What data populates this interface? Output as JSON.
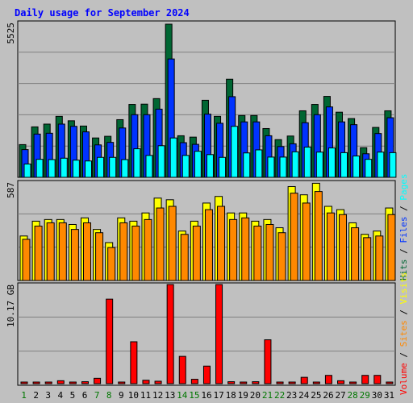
{
  "title": "Daily usage for September 2024",
  "colors": {
    "background": "#c0c0c0",
    "title": "#0000ff",
    "grid": "#808080",
    "hits": "#006633",
    "files": "#0033ff",
    "pages": "#00ffff",
    "visits": "#ffff00",
    "sites": "#ff8800",
    "volume": "#ff0000",
    "weekday_label": "#000000",
    "weekend_label": "#007700"
  },
  "chart_data": [
    {
      "type": "bar",
      "name": "hits-files-pages",
      "y_max_label": "5525",
      "ylim": [
        0,
        5525
      ],
      "grid": true,
      "series": [
        {
          "name": "Hits",
          "values": [
            1180,
            1820,
            1920,
            2200,
            2040,
            1850,
            1420,
            1480,
            2080,
            2630,
            2640,
            2840,
            5525,
            1500,
            1450,
            2780,
            2200,
            3540,
            2230,
            2230,
            1760,
            1360,
            1490,
            2400,
            2630,
            2920,
            2350,
            2120,
            1070,
            1800,
            2400
          ]
        },
        {
          "name": "Files",
          "values": [
            1000,
            1560,
            1590,
            1920,
            1840,
            1640,
            1170,
            1260,
            1780,
            2260,
            2260,
            2460,
            4270,
            1250,
            1190,
            2280,
            1950,
            2910,
            2000,
            2000,
            1500,
            1110,
            1210,
            1970,
            2260,
            2540,
            2000,
            1900,
            850,
            1580,
            2150
          ]
        },
        {
          "name": "Pages",
          "values": [
            480,
            650,
            640,
            690,
            620,
            590,
            720,
            720,
            640,
            1030,
            790,
            1140,
            1420,
            790,
            940,
            820,
            720,
            1840,
            880,
            990,
            730,
            730,
            920,
            1090,
            910,
            1060,
            890,
            770,
            650,
            910,
            890
          ]
        }
      ]
    },
    {
      "type": "bar",
      "name": "visits-sites",
      "y_max_label": "587",
      "ylim": [
        0,
        587
      ],
      "grid": true,
      "series": [
        {
          "name": "Visits",
          "values": [
            270,
            360,
            370,
            370,
            340,
            380,
            310,
            230,
            380,
            360,
            410,
            500,
            490,
            300,
            360,
            470,
            510,
            410,
            410,
            360,
            370,
            320,
            570,
            520,
            590,
            450,
            430,
            350,
            280,
            300,
            440
          ]
        },
        {
          "name": "Sites",
          "values": [
            250,
            330,
            350,
            350,
            310,
            350,
            290,
            200,
            350,
            330,
            370,
            440,
            450,
            280,
            330,
            430,
            450,
            370,
            380,
            330,
            340,
            290,
            530,
            470,
            540,
            410,
            400,
            320,
            260,
            270,
            400
          ]
        }
      ]
    },
    {
      "type": "bar",
      "name": "volume",
      "y_max_label": "10.17 GB",
      "ylim": [
        0,
        10.17
      ],
      "grid": true,
      "series": [
        {
          "name": "Volume",
          "values": [
            0.08,
            0.15,
            0.1,
            0.3,
            0.15,
            0.2,
            0.55,
            8.67,
            0.1,
            4.3,
            0.35,
            0.25,
            10.17,
            2.8,
            0.45,
            1.8,
            10.17,
            0.2,
            0.1,
            0.2,
            4.5,
            0.1,
            0.08,
            0.65,
            0.15,
            0.85,
            0.3,
            0.05,
            0.85,
            0.85,
            0.05
          ]
        }
      ]
    }
  ],
  "x_labels": [
    "1",
    "2",
    "3",
    "4",
    "5",
    "6",
    "7",
    "8",
    "9",
    "10",
    "11",
    "12",
    "13",
    "14",
    "15",
    "16",
    "17",
    "18",
    "19",
    "20",
    "21",
    "22",
    "23",
    "24",
    "25",
    "26",
    "27",
    "28",
    "29",
    "30",
    "31"
  ],
  "weekend_days": [
    1,
    7,
    8,
    14,
    15,
    21,
    22,
    28,
    29
  ],
  "legend_right_1": [
    {
      "text": "Hits",
      "color": "#006633"
    },
    {
      "text": "Files",
      "color": "#0033ff"
    },
    {
      "text": "Pages",
      "color": "#00ffff"
    }
  ],
  "legend_right_2": [
    {
      "text": "Volume",
      "color": "#ff0000"
    },
    {
      "text": "Sites",
      "color": "#ff8800"
    },
    {
      "text": "Visits",
      "color": "#ffff00"
    }
  ],
  "legend_separator": " / "
}
